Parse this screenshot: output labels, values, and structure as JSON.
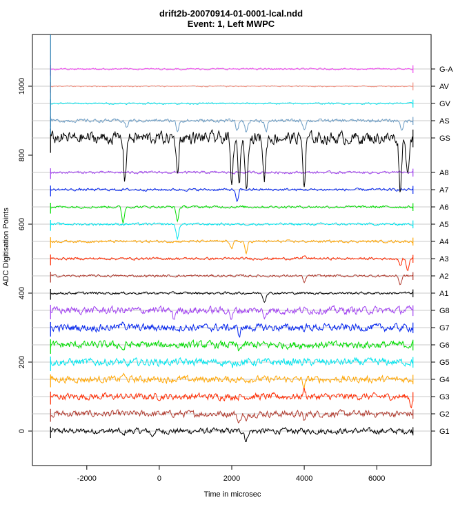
{
  "chart_data": {
    "type": "line",
    "title": "drift2b-20070914-01-0001-lcal.ndd",
    "subtitle": "Event: 1, Left MWPC",
    "xlabel": "Time in microsec",
    "ylabel": "ADC Digitisation Points",
    "xlim": [
      -3500,
      7500
    ],
    "ylim": [
      -100,
      1150
    ],
    "x_ticks": [
      -2000,
      0,
      2000,
      4000,
      6000
    ],
    "y_ticks": [
      0,
      200,
      400,
      600,
      800,
      1000
    ],
    "trace_x_range": [
      -3000,
      7000
    ],
    "grid": false,
    "legend": "none",
    "series": [
      {
        "name": "G1",
        "baseline": 0,
        "color": "#000000",
        "noise": 7,
        "spikes": [
          [
            -1000,
            -15
          ],
          [
            -200,
            -15
          ],
          [
            2400,
            -30
          ]
        ]
      },
      {
        "name": "G2",
        "baseline": 50,
        "color": "#b03a2e",
        "noise": 8,
        "spikes": [
          [
            2200,
            -30
          ],
          [
            2400,
            -25
          ],
          [
            4000,
            -20
          ]
        ]
      },
      {
        "name": "G3",
        "baseline": 100,
        "color": "#ff2a00",
        "noise": 8,
        "spikes": [
          [
            4000,
            20
          ],
          [
            6950,
            -25
          ]
        ]
      },
      {
        "name": "G4",
        "baseline": 150,
        "color": "#ffa500",
        "noise": 8,
        "spikes": [
          [
            -1000,
            15
          ],
          [
            4000,
            -20
          ]
        ]
      },
      {
        "name": "G5",
        "baseline": 200,
        "color": "#00e5ee",
        "noise": 9,
        "spikes": [
          [
            -900,
            -15
          ],
          [
            2000,
            -15
          ]
        ]
      },
      {
        "name": "G6",
        "baseline": 250,
        "color": "#00dd00",
        "noise": 9,
        "spikes": [
          [
            -1000,
            -15
          ],
          [
            2200,
            -20
          ]
        ]
      },
      {
        "name": "G7",
        "baseline": 300,
        "color": "#0022ee",
        "noise": 9,
        "spikes": [
          [
            -1000,
            25
          ],
          [
            2200,
            -20
          ]
        ]
      },
      {
        "name": "G8",
        "baseline": 350,
        "color": "#a040f0",
        "noise": 9,
        "spikes": [
          [
            400,
            -25
          ],
          [
            2000,
            -25
          ],
          [
            2900,
            -20
          ]
        ]
      },
      {
        "name": "A1",
        "baseline": 400,
        "color": "#000000",
        "noise": 3,
        "spikes": [
          [
            2900,
            -25
          ]
        ]
      },
      {
        "name": "A2",
        "baseline": 450,
        "color": "#b03a2e",
        "noise": 3,
        "spikes": [
          [
            4000,
            -20
          ],
          [
            6650,
            -25
          ]
        ]
      },
      {
        "name": "A3",
        "baseline": 500,
        "color": "#ff2a00",
        "noise": 3,
        "spikes": [
          [
            4000,
            10
          ],
          [
            6650,
            -20
          ],
          [
            6850,
            -35
          ]
        ]
      },
      {
        "name": "A4",
        "baseline": 550,
        "color": "#ffa500",
        "noise": 3,
        "spikes": [
          [
            2000,
            -20
          ],
          [
            2400,
            -35
          ]
        ]
      },
      {
        "name": "A5",
        "baseline": 600,
        "color": "#00e5ee",
        "noise": 3,
        "spikes": [
          [
            500,
            -45
          ]
        ]
      },
      {
        "name": "A6",
        "baseline": 650,
        "color": "#00dd00",
        "noise": 3,
        "spikes": [
          [
            -1000,
            -45
          ],
          [
            500,
            -40
          ]
        ]
      },
      {
        "name": "A7",
        "baseline": 700,
        "color": "#0022ee",
        "noise": 3,
        "spikes": [
          [
            2150,
            -40
          ],
          [
            2200,
            5
          ]
        ]
      },
      {
        "name": "A8",
        "baseline": 750,
        "color": "#a040f0",
        "noise": 3,
        "spikes": []
      },
      {
        "name": "GS",
        "baseline": 850,
        "color": "#000000",
        "noise": 15,
        "spikes": [
          [
            -950,
            -120
          ],
          [
            500,
            -95
          ],
          [
            2000,
            -140
          ],
          [
            2200,
            -140
          ],
          [
            2400,
            -150
          ],
          [
            2900,
            -120
          ],
          [
            4000,
            -145
          ],
          [
            6650,
            -150
          ],
          [
            6850,
            -110
          ]
        ]
      },
      {
        "name": "AS",
        "baseline": 900,
        "color": "#6a9bc3",
        "noise": 4,
        "spikes": [
          [
            -900,
            -20
          ],
          [
            500,
            -30
          ],
          [
            2150,
            -30
          ],
          [
            2400,
            -35
          ],
          [
            2950,
            -35
          ],
          [
            4000,
            -25
          ],
          [
            6700,
            -30
          ]
        ]
      },
      {
        "name": "GV",
        "baseline": 950,
        "color": "#00e5ee",
        "noise": 2,
        "spikes": []
      },
      {
        "name": "AV",
        "baseline": 1000,
        "color": "#f09080",
        "noise": 1.5,
        "spikes": []
      },
      {
        "name": "G-A",
        "baseline": 1050,
        "color": "#ee44ee",
        "noise": 2,
        "spikes": []
      }
    ]
  }
}
